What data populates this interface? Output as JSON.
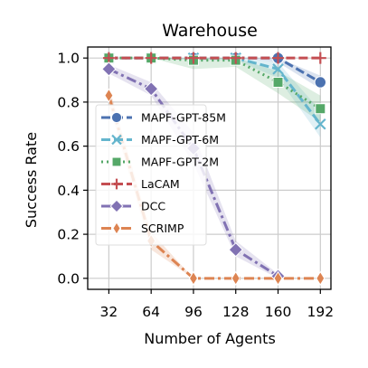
{
  "chart_data": {
    "type": "line",
    "title": "Warehouse",
    "xlabel": "Number of Agents",
    "ylabel": "Success Rate",
    "x": [
      32,
      64,
      96,
      128,
      160,
      192
    ],
    "x_tick_labels": [
      "32",
      "64",
      "96",
      "128",
      "160",
      "192"
    ],
    "xlim": [
      16,
      200
    ],
    "ylim": [
      -0.05,
      1.05
    ],
    "y_ticks": [
      0.0,
      0.2,
      0.4,
      0.6,
      0.8,
      1.0
    ],
    "y_tick_labels": [
      "0.0",
      "0.2",
      "0.4",
      "0.6",
      "0.8",
      "1.0"
    ],
    "grid": true,
    "legend_position": "center-left",
    "series": [
      {
        "name": "MAPF-GPT-85M",
        "color": "#4c72b0",
        "linestyle": "dashed",
        "marker": "circle",
        "values": [
          1.0,
          1.0,
          1.0,
          1.0,
          1.0,
          0.89
        ],
        "lower": [
          1.0,
          1.0,
          1.0,
          1.0,
          0.98,
          0.86
        ],
        "upper": [
          1.0,
          1.0,
          1.0,
          1.0,
          1.0,
          0.92
        ]
      },
      {
        "name": "MAPF-GPT-6M",
        "color": "#64b5cd",
        "linestyle": "dashed",
        "marker": "x",
        "values": [
          1.0,
          1.0,
          1.0,
          1.0,
          0.95,
          0.7
        ],
        "lower": [
          1.0,
          1.0,
          0.99,
          0.99,
          0.91,
          0.64
        ],
        "upper": [
          1.0,
          1.0,
          1.0,
          1.0,
          0.98,
          0.76
        ]
      },
      {
        "name": "MAPF-GPT-2M",
        "color": "#55a868",
        "linestyle": "dotted",
        "marker": "square",
        "values": [
          1.0,
          1.0,
          0.99,
          0.99,
          0.89,
          0.77
        ],
        "lower": [
          1.0,
          1.0,
          0.95,
          0.96,
          0.84,
          0.71
        ],
        "upper": [
          1.0,
          1.0,
          1.0,
          1.0,
          0.94,
          0.83
        ]
      },
      {
        "name": "LaCAM",
        "color": "#c44e52",
        "linestyle": "dashed",
        "marker": "plus",
        "values": [
          1.0,
          1.0,
          1.0,
          1.0,
          1.0,
          1.0
        ],
        "lower": [
          1.0,
          1.0,
          1.0,
          1.0,
          1.0,
          1.0
        ],
        "upper": [
          1.0,
          1.0,
          1.0,
          1.0,
          1.0,
          1.0
        ]
      },
      {
        "name": "DCC",
        "color": "#8172b3",
        "linestyle": "dashdot",
        "marker": "diamond",
        "values": [
          0.95,
          0.86,
          0.59,
          0.13,
          0.01,
          null
        ],
        "lower": [
          0.93,
          0.83,
          0.52,
          0.1,
          0.0,
          null
        ],
        "upper": [
          0.97,
          0.89,
          0.66,
          0.17,
          0.02,
          null
        ]
      },
      {
        "name": "SCRIMP",
        "color": "#dd8452",
        "linestyle": "dashdot",
        "marker": "thin_diamond",
        "values": [
          0.83,
          0.17,
          0.0,
          0.0,
          0.0,
          0.0
        ],
        "lower": [
          0.79,
          0.13,
          0.0,
          0.0,
          0.0,
          0.0
        ],
        "upper": [
          0.87,
          0.21,
          0.0,
          0.0,
          0.0,
          0.0
        ]
      }
    ]
  }
}
